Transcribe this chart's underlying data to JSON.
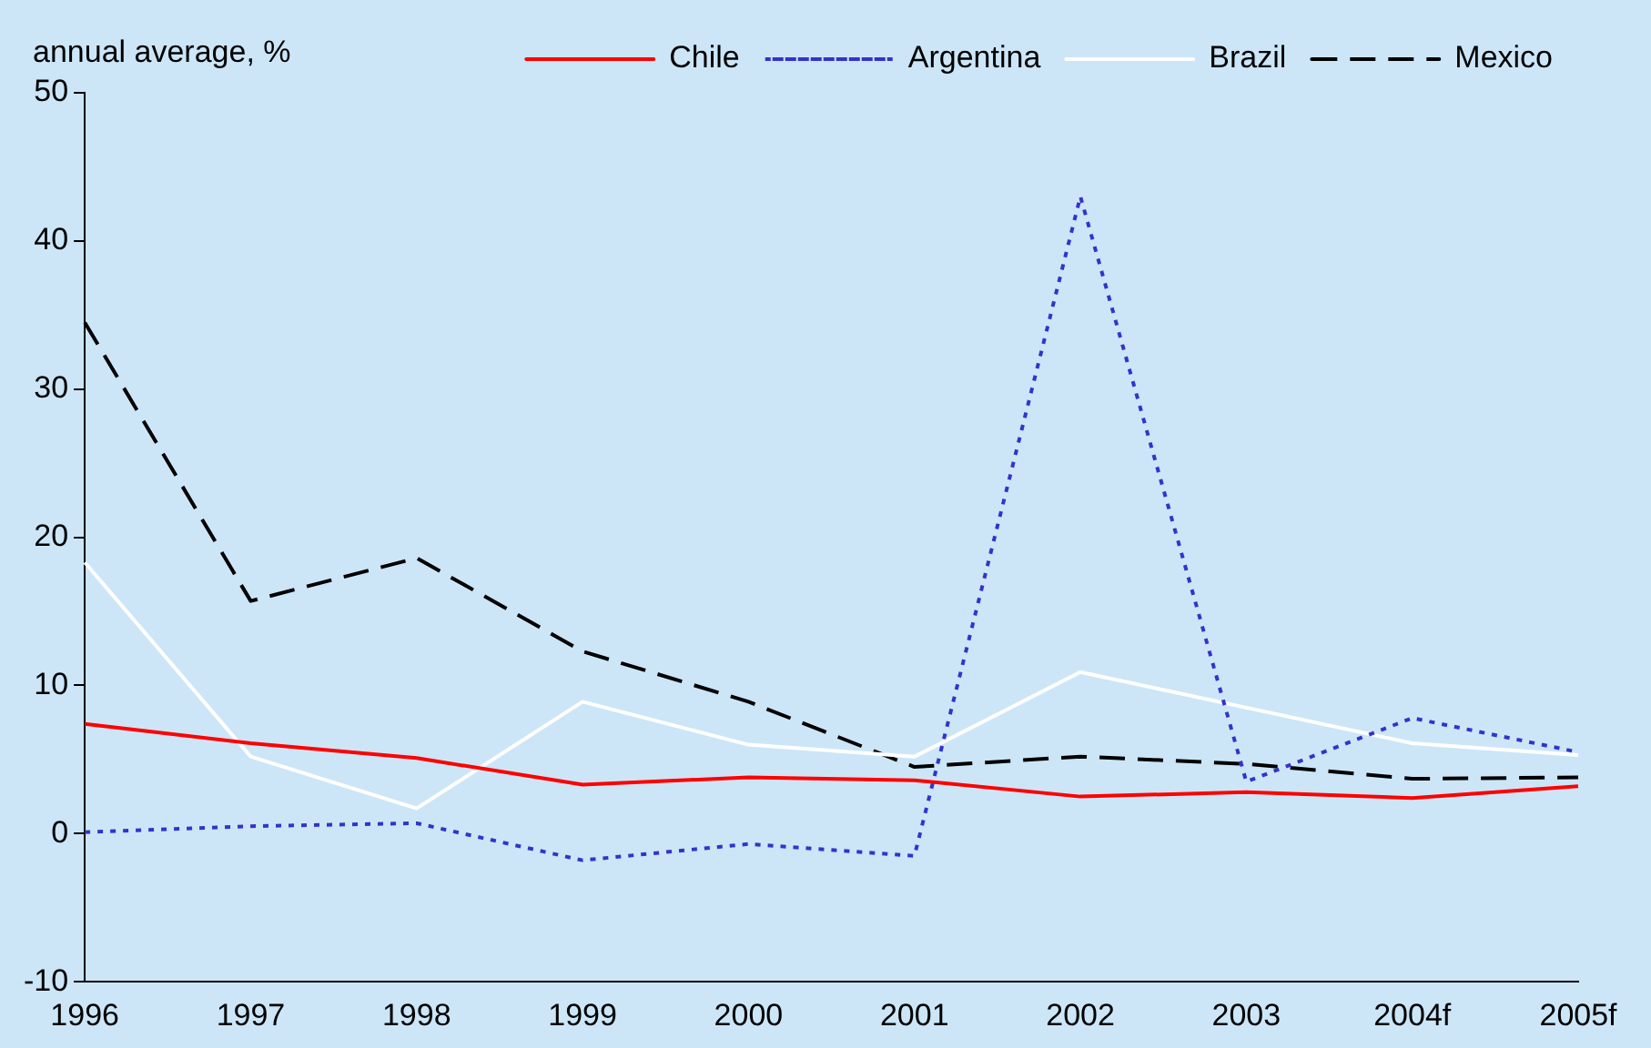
{
  "chart_data": {
    "type": "line",
    "ylabel": "annual average, %",
    "categories": [
      "1996",
      "1997",
      "1998",
      "1999",
      "2000",
      "2001",
      "2002",
      "2003",
      "2004f",
      "2005f"
    ],
    "series": [
      {
        "name": "Chile",
        "color": "#ff0000",
        "line_style": "solid",
        "values": [
          7.4,
          6.1,
          5.1,
          3.3,
          3.8,
          3.6,
          2.5,
          2.8,
          2.4,
          3.2
        ]
      },
      {
        "name": "Argentina",
        "color": "#3333cc",
        "line_style": "dotted",
        "values": [
          0.1,
          0.5,
          0.7,
          -1.8,
          -0.7,
          -1.5,
          43,
          3.5,
          7.8,
          5.5
        ]
      },
      {
        "name": "Brazil",
        "color": "#ffffff",
        "line_style": "solid",
        "values": [
          18.3,
          5.2,
          1.7,
          8.9,
          6.0,
          5.2,
          10.9,
          8.5,
          6.1,
          5.3
        ]
      },
      {
        "name": "Mexico",
        "color": "#000000",
        "line_style": "dashed",
        "values": [
          34.5,
          15.7,
          18.6,
          12.3,
          8.9,
          4.5,
          5.2,
          4.7,
          3.7,
          3.8
        ]
      }
    ],
    "ylim": [
      -10,
      50
    ],
    "yticks": [
      -10,
      0,
      10,
      20,
      30,
      40,
      50
    ],
    "grid": false,
    "legend": "top right",
    "marker": "none"
  }
}
